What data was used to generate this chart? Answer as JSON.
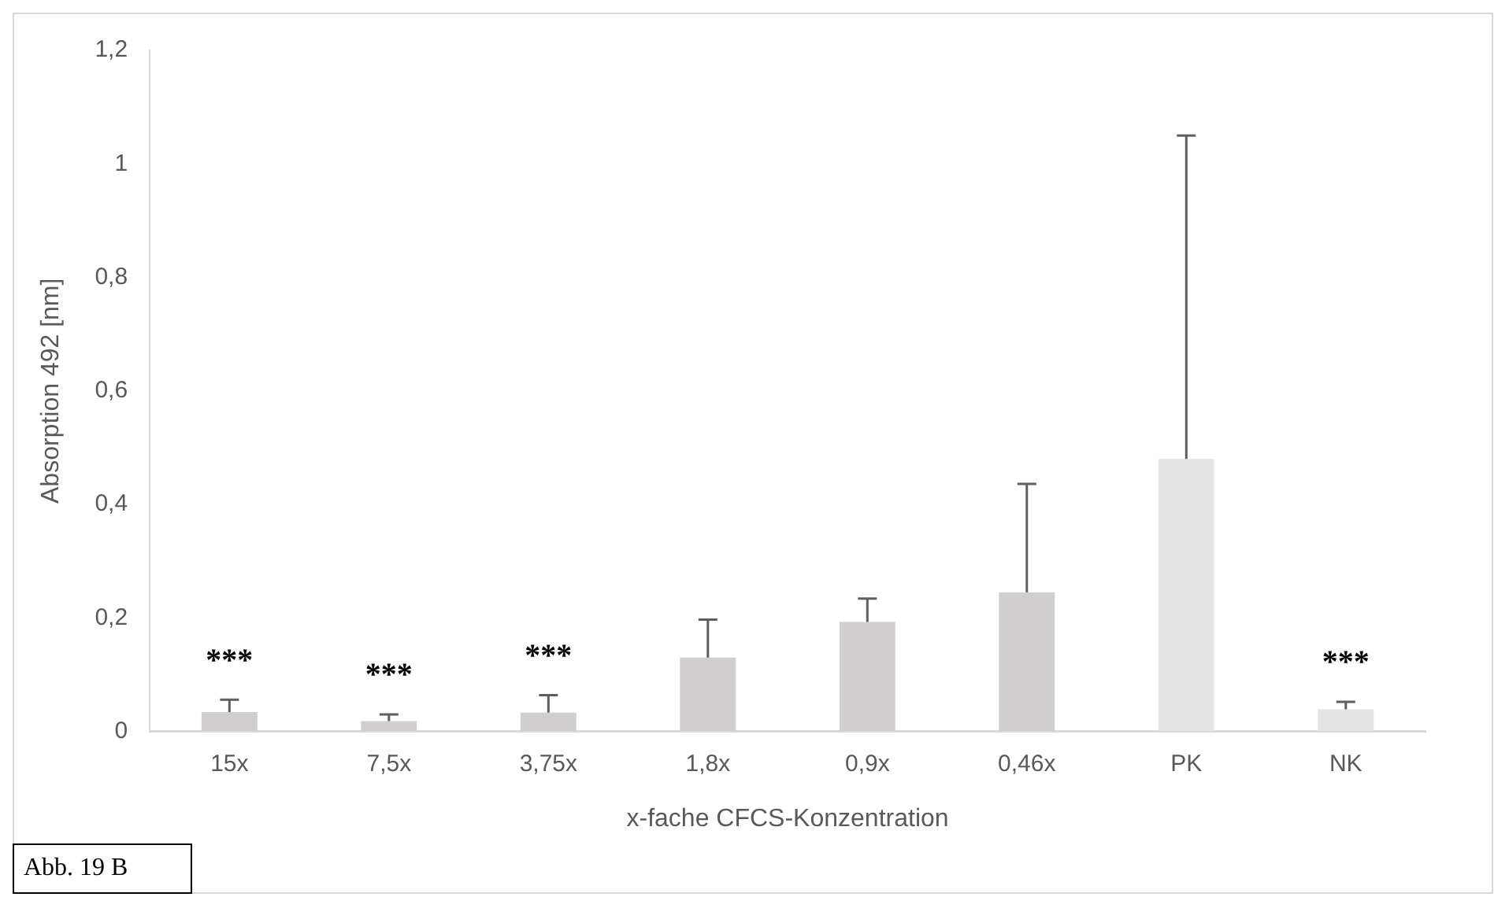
{
  "chart_data": {
    "type": "bar",
    "xlabel": "x-fache CFCS-Konzentration",
    "ylabel": "Absorption 492 [nm]",
    "categories": [
      "15x",
      "7,5x",
      "3,75x",
      "1,8x",
      "0,9x",
      "0,46x",
      "PK",
      "NK"
    ],
    "values": [
      0.034,
      0.018,
      0.033,
      0.13,
      0.193,
      0.245,
      0.48,
      0.039
    ],
    "colors": [
      "#d0cecf",
      "#d0cecf",
      "#d0cecf",
      "#d0cecf",
      "#d0cecf",
      "#d0cecf",
      "#e4e4e4",
      "#e4e4e4"
    ],
    "errors": [
      [
        0.034,
        0.056
      ],
      [
        0.018,
        0.03
      ],
      [
        0.033,
        0.064
      ],
      [
        0.13,
        0.197
      ],
      [
        0.193,
        0.234
      ],
      [
        0.245,
        0.436
      ],
      [
        0.48,
        1.05
      ],
      [
        0.039,
        0.052
      ]
    ],
    "ylim": [
      0,
      1.2
    ],
    "yticks": [
      0,
      {
        "value": 0.2,
        "label": "0,2"
      },
      {
        "value": 0.4,
        "label": "0,4"
      },
      {
        "value": 0.6,
        "label": "0,6"
      },
      {
        "value": 0.8,
        "label": "0,8"
      },
      1,
      {
        "value": 1.2,
        "label": "1,2"
      }
    ],
    "grid": false,
    "legend": false,
    "annotations": [
      {
        "text": "***",
        "x": "15x",
        "y": 0.056
      },
      {
        "text": "***",
        "x": "7,5x",
        "y": 0.03
      },
      {
        "text": "***",
        "x": "3,75x",
        "y": 0.064
      },
      {
        "text": "***",
        "x": "NK",
        "y": 0.052
      },
      "Abb. 19 B"
    ]
  }
}
